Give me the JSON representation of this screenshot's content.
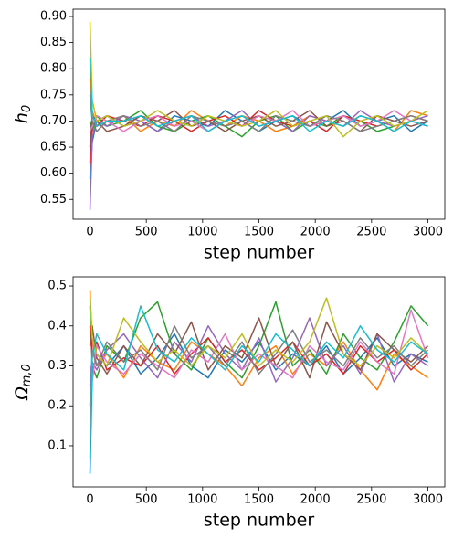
{
  "chart_data": [
    {
      "type": "line",
      "xlabel": "step number",
      "ylabel": {
        "base": "h",
        "sub": "0"
      },
      "x": [
        0,
        20,
        60,
        150,
        300,
        450,
        600,
        750,
        900,
        1050,
        1200,
        1350,
        1500,
        1650,
        1800,
        1950,
        2100,
        2250,
        2400,
        2550,
        2700,
        2850,
        3000
      ],
      "xlim": [
        -150,
        3150
      ],
      "xticks": [
        0,
        500,
        1000,
        1500,
        2000,
        2500,
        3000
      ],
      "ylim": [
        0.512,
        0.914
      ],
      "yticks": [
        0.55,
        {
          "value": 0.6,
          "label": "0.60"
        },
        0.65,
        {
          "value": 0.7,
          "label": "0.70"
        },
        0.75,
        {
          "value": 0.8,
          "label": "0.80"
        },
        0.85,
        {
          "value": 0.9,
          "label": "0.90"
        }
      ],
      "series": [
        {
          "color": "#1f77b4",
          "values": [
            0.59,
            0.66,
            0.7,
            0.71,
            0.69,
            0.7,
            0.68,
            0.71,
            0.7,
            0.69,
            0.72,
            0.7,
            0.68,
            0.7,
            0.71,
            0.69,
            0.7,
            0.72,
            0.69,
            0.7,
            0.71,
            0.68,
            0.7
          ]
        },
        {
          "color": "#ff7f0e",
          "values": [
            0.78,
            0.72,
            0.69,
            0.7,
            0.71,
            0.68,
            0.7,
            0.69,
            0.72,
            0.7,
            0.69,
            0.71,
            0.7,
            0.68,
            0.69,
            0.71,
            0.7,
            0.69,
            0.71,
            0.7,
            0.68,
            0.72,
            0.71
          ]
        },
        {
          "color": "#2ca02c",
          "values": [
            0.7,
            0.68,
            0.71,
            0.69,
            0.7,
            0.72,
            0.69,
            0.68,
            0.7,
            0.71,
            0.69,
            0.67,
            0.7,
            0.71,
            0.68,
            0.7,
            0.69,
            0.71,
            0.7,
            0.68,
            0.69,
            0.7,
            0.69
          ]
        },
        {
          "color": "#d62728",
          "values": [
            0.62,
            0.7,
            0.69,
            0.71,
            0.7,
            0.69,
            0.71,
            0.7,
            0.68,
            0.7,
            0.71,
            0.69,
            0.72,
            0.7,
            0.69,
            0.7,
            0.68,
            0.71,
            0.7,
            0.69,
            0.7,
            0.71,
            0.7
          ]
        },
        {
          "color": "#9467bd",
          "values": [
            0.53,
            0.67,
            0.7,
            0.69,
            0.71,
            0.7,
            0.68,
            0.7,
            0.71,
            0.69,
            0.7,
            0.72,
            0.69,
            0.7,
            0.68,
            0.71,
            0.7,
            0.69,
            0.72,
            0.7,
            0.69,
            0.7,
            0.71
          ]
        },
        {
          "color": "#8c564b",
          "values": [
            0.65,
            0.71,
            0.7,
            0.68,
            0.69,
            0.71,
            0.7,
            0.72,
            0.69,
            0.7,
            0.68,
            0.7,
            0.71,
            0.69,
            0.7,
            0.72,
            0.69,
            0.7,
            0.68,
            0.71,
            0.7,
            0.69,
            0.7
          ]
        },
        {
          "color": "#e377c2",
          "values": [
            0.68,
            0.69,
            0.71,
            0.7,
            0.68,
            0.7,
            0.71,
            0.69,
            0.7,
            0.68,
            0.7,
            0.69,
            0.71,
            0.7,
            0.72,
            0.69,
            0.7,
            0.71,
            0.69,
            0.7,
            0.72,
            0.7,
            0.69
          ]
        },
        {
          "color": "#7f7f7f",
          "values": [
            0.75,
            0.7,
            0.68,
            0.7,
            0.71,
            0.69,
            0.7,
            0.68,
            0.71,
            0.7,
            0.69,
            0.7,
            0.68,
            0.71,
            0.7,
            0.69,
            0.71,
            0.7,
            0.68,
            0.69,
            0.7,
            0.71,
            0.7
          ]
        },
        {
          "color": "#bcbd22",
          "values": [
            0.89,
            0.74,
            0.7,
            0.71,
            0.69,
            0.7,
            0.72,
            0.7,
            0.69,
            0.71,
            0.7,
            0.69,
            0.7,
            0.72,
            0.69,
            0.7,
            0.71,
            0.67,
            0.7,
            0.71,
            0.69,
            0.7,
            0.72
          ]
        },
        {
          "color": "#17becf",
          "values": [
            0.82,
            0.71,
            0.69,
            0.7,
            0.7,
            0.71,
            0.69,
            0.7,
            0.71,
            0.68,
            0.7,
            0.71,
            0.69,
            0.7,
            0.71,
            0.68,
            0.7,
            0.69,
            0.71,
            0.7,
            0.68,
            0.7,
            0.69
          ]
        }
      ]
    },
    {
      "type": "line",
      "xlabel": "step number",
      "ylabel": {
        "base": "Ω",
        "sub": "m,0"
      },
      "x": [
        0,
        20,
        60,
        150,
        300,
        450,
        600,
        750,
        900,
        1050,
        1200,
        1350,
        1500,
        1650,
        1800,
        1950,
        2100,
        2250,
        2400,
        2550,
        2700,
        2850,
        3000
      ],
      "xlim": [
        -150,
        3150
      ],
      "xticks": [
        0,
        500,
        1000,
        1500,
        2000,
        2500,
        3000
      ],
      "ylim": [
        -0.003,
        0.523
      ],
      "yticks": [
        0.1,
        0.2,
        0.3,
        0.4,
        0.5
      ],
      "series": [
        {
          "color": "#1f77b4",
          "values": [
            0.03,
            0.28,
            0.33,
            0.3,
            0.35,
            0.28,
            0.32,
            0.38,
            0.3,
            0.27,
            0.34,
            0.31,
            0.36,
            0.29,
            0.33,
            0.3,
            0.35,
            0.28,
            0.32,
            0.37,
            0.3,
            0.33,
            0.31
          ]
        },
        {
          "color": "#ff7f0e",
          "values": [
            0.49,
            0.36,
            0.3,
            0.33,
            0.27,
            0.35,
            0.31,
            0.29,
            0.36,
            0.33,
            0.3,
            0.25,
            0.32,
            0.35,
            0.28,
            0.33,
            0.3,
            0.36,
            0.29,
            0.24,
            0.33,
            0.3,
            0.27
          ]
        },
        {
          "color": "#2ca02c",
          "values": [
            0.45,
            0.3,
            0.27,
            0.35,
            0.31,
            0.42,
            0.46,
            0.33,
            0.29,
            0.37,
            0.31,
            0.27,
            0.35,
            0.46,
            0.3,
            0.34,
            0.28,
            0.38,
            0.32,
            0.29,
            0.36,
            0.45,
            0.4
          ]
        },
        {
          "color": "#d62728",
          "values": [
            0.4,
            0.33,
            0.36,
            0.29,
            0.32,
            0.3,
            0.35,
            0.28,
            0.33,
            0.37,
            0.31,
            0.34,
            0.29,
            0.32,
            0.36,
            0.3,
            0.33,
            0.28,
            0.35,
            0.31,
            0.34,
            0.29,
            0.33
          ]
        },
        {
          "color": "#9467bd",
          "values": [
            0.25,
            0.31,
            0.29,
            0.34,
            0.38,
            0.32,
            0.27,
            0.36,
            0.31,
            0.4,
            0.33,
            0.29,
            0.37,
            0.26,
            0.32,
            0.42,
            0.3,
            0.35,
            0.28,
            0.38,
            0.26,
            0.33,
            0.3
          ]
        },
        {
          "color": "#8c564b",
          "values": [
            0.35,
            0.4,
            0.32,
            0.28,
            0.35,
            0.3,
            0.38,
            0.33,
            0.41,
            0.29,
            0.35,
            0.32,
            0.42,
            0.3,
            0.36,
            0.27,
            0.41,
            0.33,
            0.29,
            0.38,
            0.34,
            0.31,
            0.35
          ]
        },
        {
          "color": "#e377c2",
          "values": [
            0.3,
            0.26,
            0.35,
            0.31,
            0.28,
            0.33,
            0.3,
            0.27,
            0.34,
            0.31,
            0.38,
            0.29,
            0.33,
            0.3,
            0.27,
            0.35,
            0.31,
            0.29,
            0.36,
            0.31,
            0.28,
            0.44,
            0.32
          ]
        },
        {
          "color": "#7f7f7f",
          "values": [
            0.2,
            0.34,
            0.3,
            0.36,
            0.31,
            0.34,
            0.29,
            0.4,
            0.32,
            0.35,
            0.3,
            0.36,
            0.28,
            0.33,
            0.39,
            0.31,
            0.34,
            0.3,
            0.37,
            0.32,
            0.35,
            0.3,
            0.34
          ]
        },
        {
          "color": "#bcbd22",
          "values": [
            0.47,
            0.37,
            0.33,
            0.3,
            0.42,
            0.36,
            0.31,
            0.34,
            0.3,
            0.35,
            0.32,
            0.38,
            0.3,
            0.34,
            0.31,
            0.36,
            0.47,
            0.33,
            0.3,
            0.35,
            0.32,
            0.37,
            0.33
          ]
        },
        {
          "color": "#17becf",
          "values": [
            0.07,
            0.32,
            0.38,
            0.33,
            0.29,
            0.45,
            0.34,
            0.31,
            0.37,
            0.33,
            0.29,
            0.35,
            0.31,
            0.38,
            0.34,
            0.3,
            0.36,
            0.32,
            0.4,
            0.34,
            0.31,
            0.36,
            0.33
          ]
        }
      ]
    }
  ]
}
